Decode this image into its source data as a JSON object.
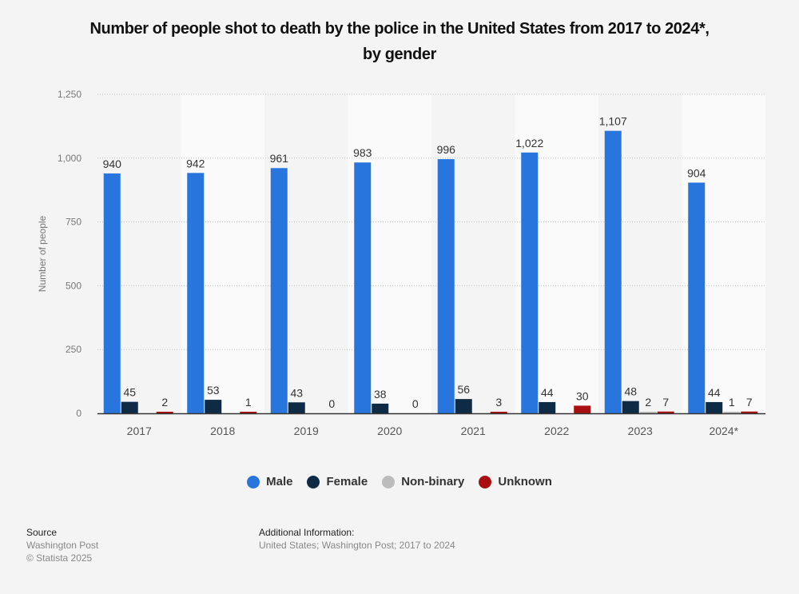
{
  "chart_data": {
    "type": "bar",
    "title": "Number of people shot to death by the police in the United States from 2017 to 2024*, by gender",
    "xlabel": "",
    "ylabel": "Number of people",
    "ylim": [
      0,
      1250
    ],
    "yticks": [
      0,
      250,
      500,
      750,
      1000,
      1250
    ],
    "ytick_labels": [
      "0",
      "250",
      "500",
      "750",
      "1,000",
      "1,250"
    ],
    "grid": true,
    "legend_position": "bottom",
    "categories": [
      "2017",
      "2018",
      "2019",
      "2020",
      "2021",
      "2022",
      "2023",
      "2024*"
    ],
    "series": [
      {
        "name": "Male",
        "color": "#2876dd",
        "values": [
          940,
          942,
          961,
          983,
          996,
          1022,
          1107,
          904
        ],
        "labels": [
          "940",
          "942",
          "961",
          "983",
          "996",
          "1,022",
          "1,107",
          "904"
        ]
      },
      {
        "name": "Female",
        "color": "#0f2a45",
        "values": [
          45,
          53,
          43,
          38,
          56,
          44,
          48,
          44
        ],
        "labels": [
          "45",
          "53",
          "43",
          "38",
          "56",
          "44",
          "48",
          "44"
        ]
      },
      {
        "name": "Non-binary",
        "color": "#bcbcbc",
        "values": [
          null,
          null,
          null,
          null,
          null,
          null,
          2,
          1
        ],
        "labels": [
          null,
          null,
          null,
          null,
          null,
          null,
          "2",
          "1"
        ]
      },
      {
        "name": "Unknown",
        "color": "#a90f10",
        "values": [
          2,
          1,
          0,
          0,
          3,
          30,
          7,
          7
        ],
        "labels": [
          "2",
          "1",
          "0",
          "0",
          "3",
          "30",
          "7",
          "7"
        ]
      }
    ]
  },
  "title_line1": "Number of people shot to death by the police in the United States from 2017 to 2024*,",
  "title_line2": "by gender",
  "legend": [
    {
      "label": "Male",
      "color": "#2876dd"
    },
    {
      "label": "Female",
      "color": "#0f2a45"
    },
    {
      "label": "Non-binary",
      "color": "#bcbcbc"
    },
    {
      "label": "Unknown",
      "color": "#a90f10"
    }
  ],
  "footer": {
    "source_heading": "Source",
    "source_text": "Washington Post",
    "copyright": "© Statista 2025",
    "additional_heading": "Additional Information:",
    "additional_text": "United States; Washington Post; 2017 to 2024"
  }
}
